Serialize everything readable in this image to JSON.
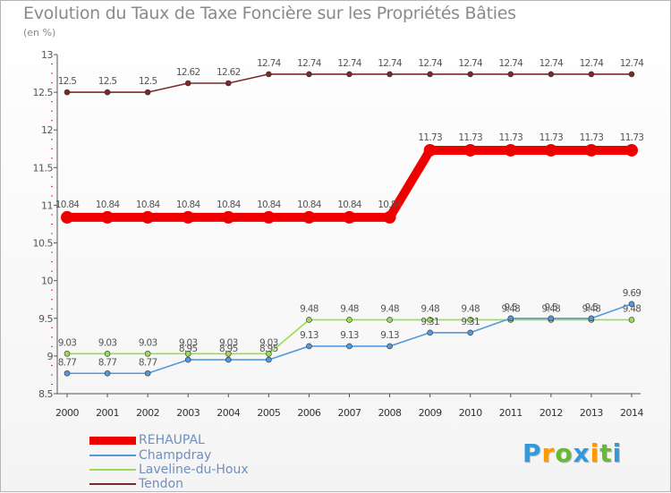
{
  "chart_data": {
    "type": "line",
    "title": "Evolution du Taux de Taxe Foncière sur les Propriétés Bâties",
    "subtitle": "(en %)",
    "xlabel": "",
    "ylabel": "",
    "ylim": [
      8.5,
      13
    ],
    "yticks": [
      "8.5",
      "9",
      "9.5",
      "10",
      "10.5",
      "11",
      "11.5",
      "12",
      "12.5",
      "13"
    ],
    "grid": false,
    "legend_position": "bottom-left",
    "categories": [
      "2000",
      "2001",
      "2002",
      "2003",
      "2004",
      "2005",
      "2006",
      "2007",
      "2008",
      "2009",
      "2010",
      "2011",
      "2012",
      "2013",
      "2014"
    ],
    "series": [
      {
        "name": "Tendon",
        "color": "#7a2a2a",
        "values": [
          12.5,
          12.5,
          12.5,
          12.62,
          12.62,
          12.74,
          12.74,
          12.74,
          12.74,
          12.74,
          12.74,
          12.74,
          12.74,
          12.74,
          12.74
        ],
        "labels": [
          "12.5",
          "12.5",
          "12.5",
          "12.62",
          "12.62",
          "12.74",
          "12.74",
          "12.74",
          "12.74",
          "12.74",
          "12.74",
          "12.74",
          "12.74",
          "12.74",
          "12.74"
        ]
      },
      {
        "name": "REHAUPAL",
        "color": "#ee0000",
        "values": [
          10.84,
          10.84,
          10.84,
          10.84,
          10.84,
          10.84,
          10.84,
          10.84,
          10.84,
          11.73,
          11.73,
          11.73,
          11.73,
          11.73,
          11.73
        ],
        "labels": [
          "10.84",
          "10.84",
          "10.84",
          "10.84",
          "10.84",
          "10.84",
          "10.84",
          "10.84",
          "10.84",
          "11.73",
          "11.73",
          "11.73",
          "11.73",
          "11.73",
          "11.73"
        ]
      },
      {
        "name": "Laveline-du-Houx",
        "color": "#99dd55",
        "values": [
          9.03,
          9.03,
          9.03,
          9.03,
          9.03,
          9.03,
          9.48,
          9.48,
          9.48,
          9.48,
          9.48,
          9.48,
          9.48,
          9.48,
          9.48
        ],
        "labels": [
          "9.03",
          "9.03",
          "9.03",
          "9.03",
          "9.03",
          "9.03",
          "9.48",
          "9.48",
          "9.48",
          "9.48",
          "9.48",
          "9.48",
          "9.48",
          "9.48",
          "9.48"
        ]
      },
      {
        "name": "Champdray",
        "color": "#5599dd",
        "values": [
          8.77,
          8.77,
          8.77,
          8.95,
          8.95,
          8.95,
          9.13,
          9.13,
          9.13,
          9.31,
          9.31,
          9.5,
          9.5,
          9.5,
          9.69
        ],
        "labels": [
          "8.77",
          "8.77",
          "8.77",
          "8.95",
          "8.95",
          "8.95",
          "9.13",
          "9.13",
          "9.13",
          "9.31",
          "9.31",
          "9.5",
          "9.5",
          "9.5",
          "9.69"
        ]
      }
    ],
    "legend": [
      "REHAUPAL",
      "Champdray",
      "Laveline-du-Houx",
      "Tendon"
    ]
  },
  "logo": {
    "letters": [
      "P",
      "r",
      "o",
      "x",
      "i",
      "t",
      "i"
    ],
    "colors": [
      "#3399dd",
      "#ff9900",
      "#66bb33",
      "#3399dd",
      "#ff9900",
      "#66bb33",
      "#3399dd"
    ]
  }
}
